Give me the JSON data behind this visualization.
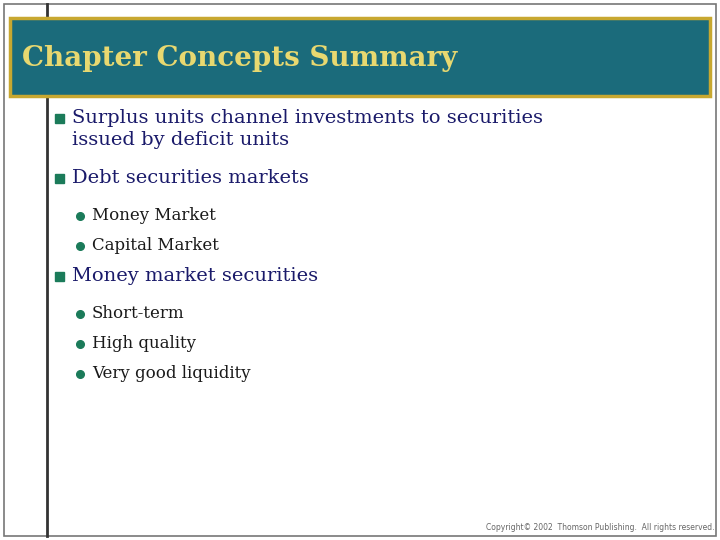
{
  "title": "Chapter Concepts Summary",
  "title_color": "#E8D870",
  "title_bg_color": "#1B6B7B",
  "title_border_color": "#C8A830",
  "bg_color": "#FFFFFF",
  "outer_border_color": "#777777",
  "bullet_color": "#1B7B5A",
  "sub_bullet_color": "#1B7B5A",
  "text_color": "#1A1A6A",
  "sub_text_color": "#1A1A1A",
  "copyright_text": "Copyright© 2002  Thomson Publishing.  All rights reserved.",
  "items": [
    {
      "type": "main",
      "text": "Surplus units channel investments to securities\nissued by deficit units"
    },
    {
      "type": "main",
      "text": "Debt securities markets"
    },
    {
      "type": "sub",
      "text": "Money Market"
    },
    {
      "type": "sub",
      "text": "Capital Market"
    },
    {
      "type": "main",
      "text": "Money market securities"
    },
    {
      "type": "sub",
      "text": "Short-term"
    },
    {
      "type": "sub",
      "text": "High quality"
    },
    {
      "type": "sub",
      "text": "Very good liquidity"
    }
  ]
}
